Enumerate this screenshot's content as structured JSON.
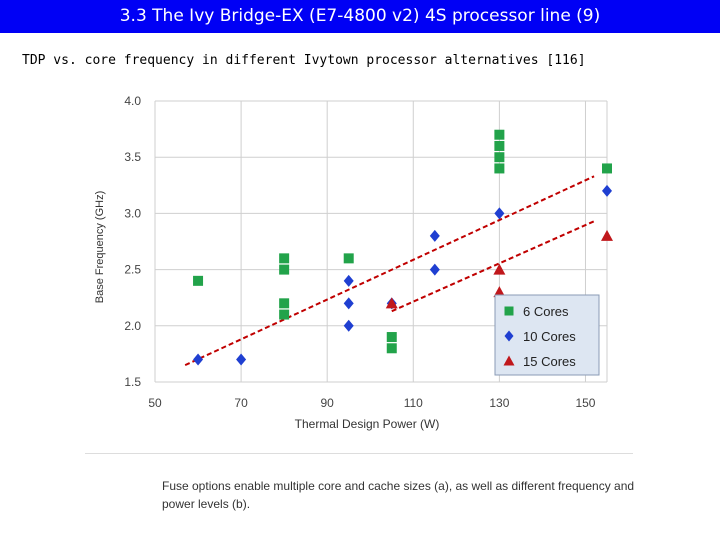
{
  "header": {
    "title": "3.3 The Ivy Bridge-EX (E7-4800 v2) 4S processor line (9)"
  },
  "subtitle": "TDP vs. core frequency in different Ivytown processor alternatives [116]",
  "caption": "Fuse options enable multiple core and cache sizes (a), as well as different frequency and power levels (b).",
  "chart_data": {
    "type": "scatter",
    "title": "",
    "xlabel": "Thermal Design Power (W)",
    "ylabel": "Base Frequency (GHz)",
    "xlim": [
      50,
      155
    ],
    "ylim": [
      1.5,
      4.0
    ],
    "x_ticks": [
      "50",
      "70",
      "90",
      "110",
      "130",
      "150"
    ],
    "y_ticks": [
      "1.5",
      "2.0",
      "2.5",
      "3.0",
      "3.5",
      "4.0"
    ],
    "legend_position": "bottom-right",
    "series": [
      {
        "name": "6 Cores",
        "marker": "square",
        "color": "#22a34a",
        "points": [
          [
            60,
            2.4
          ],
          [
            80,
            2.6
          ],
          [
            80,
            2.5
          ],
          [
            80,
            2.2
          ],
          [
            80,
            2.1
          ],
          [
            95,
            2.6
          ],
          [
            105,
            1.9
          ],
          [
            105,
            1.8
          ],
          [
            130,
            3.7
          ],
          [
            130,
            3.6
          ],
          [
            130,
            3.5
          ],
          [
            130,
            3.4
          ],
          [
            155,
            3.4
          ]
        ]
      },
      {
        "name": "10 Cores",
        "marker": "diamond",
        "color": "#1f3fd1",
        "points": [
          [
            60,
            1.7
          ],
          [
            70,
            1.7
          ],
          [
            95,
            2.4
          ],
          [
            95,
            2.2
          ],
          [
            95,
            2.0
          ],
          [
            105,
            2.2
          ],
          [
            115,
            2.8
          ],
          [
            115,
            2.5
          ],
          [
            130,
            3.0
          ],
          [
            155,
            3.2
          ]
        ]
      },
      {
        "name": "15 Cores",
        "marker": "triangle",
        "color": "#c0181c",
        "points": [
          [
            105,
            2.2
          ],
          [
            130,
            2.5
          ],
          [
            130,
            2.3
          ],
          [
            155,
            2.8
          ]
        ]
      }
    ],
    "trendlines": [
      {
        "color": "#c00000",
        "style": "dashed",
        "points": [
          [
            57,
            1.65
          ],
          [
            152,
            3.33
          ]
        ]
      },
      {
        "color": "#c00000",
        "style": "dashed",
        "points": [
          [
            105,
            2.13
          ],
          [
            152,
            2.93
          ]
        ]
      }
    ],
    "colors": {
      "grid": "#cfcfcf",
      "legend_bg": "#dde6f2",
      "legend_border": "#8a9bb5"
    }
  }
}
